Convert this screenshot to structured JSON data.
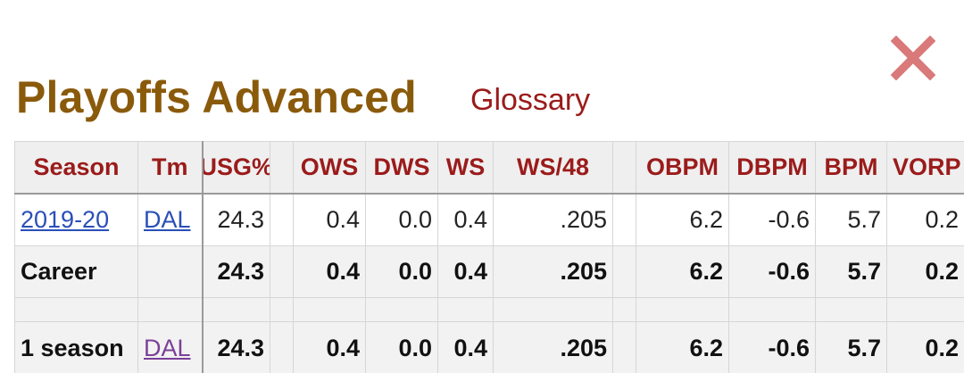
{
  "title": "Playoffs Advanced",
  "glossary_label": "Glossary",
  "close_icon": "close-icon",
  "colors": {
    "title": "#8a5a0b",
    "header_text": "#9b1b1b",
    "link": "#2a4fb8",
    "visited_link": "#7b3f98",
    "close": "#d9797a"
  },
  "table": {
    "headers": {
      "season": "Season",
      "tm": "Tm",
      "usg": "USG%",
      "ows": "OWS",
      "dws": "DWS",
      "ws": "WS",
      "ws48": "WS/48",
      "obpm": "OBPM",
      "dbpm": "DBPM",
      "bpm": "BPM",
      "vorp": "VORP"
    },
    "rows": [
      {
        "season": "2019-20",
        "tm": "DAL",
        "usg": "24.3",
        "ows": "0.4",
        "dws": "0.0",
        "ws": "0.4",
        "ws48": ".205",
        "obpm": "6.2",
        "dbpm": "-0.6",
        "bpm": "5.7",
        "vorp": "0.2"
      },
      {
        "season": "Career",
        "tm": "",
        "usg": "24.3",
        "ows": "0.4",
        "dws": "0.0",
        "ws": "0.4",
        "ws48": ".205",
        "obpm": "6.2",
        "dbpm": "-0.6",
        "bpm": "5.7",
        "vorp": "0.2"
      },
      {
        "season": "1 season",
        "tm": "DAL",
        "usg": "24.3",
        "ows": "0.4",
        "dws": "0.0",
        "ws": "0.4",
        "ws48": ".205",
        "obpm": "6.2",
        "dbpm": "-0.6",
        "bpm": "5.7",
        "vorp": "0.2"
      }
    ]
  }
}
